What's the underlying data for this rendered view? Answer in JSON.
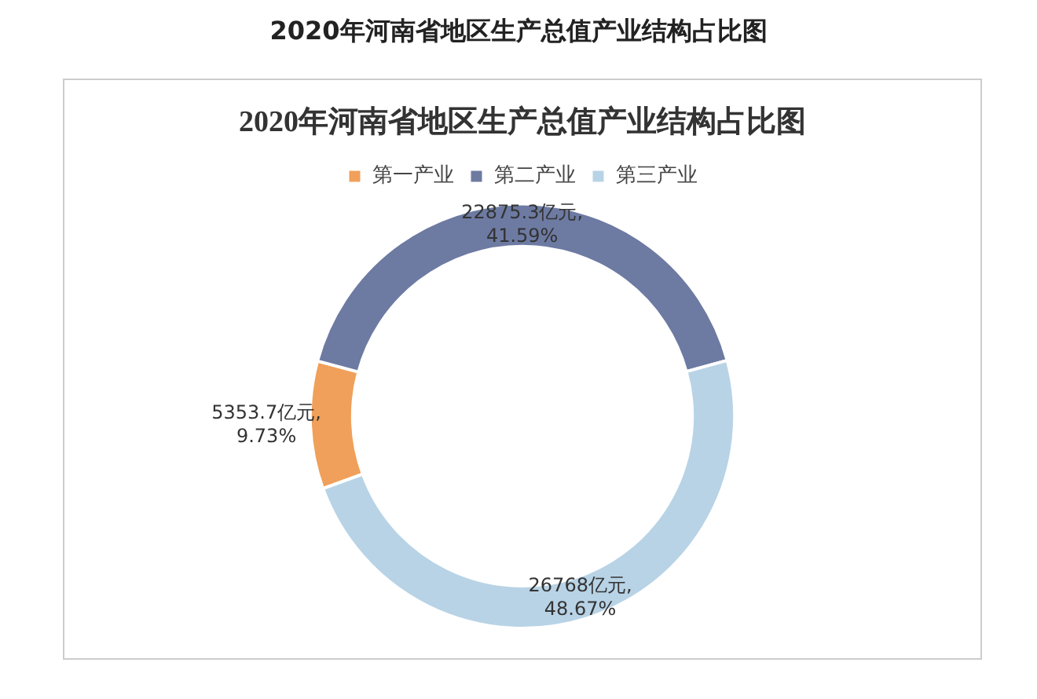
{
  "chart_data": {
    "type": "donut",
    "title": "2020年河南省地区生产总值产业结构占比图",
    "subtitle": "2020年河南省地区生产总值产业结构占比图",
    "categories": [
      "第一产业",
      "第二产业",
      "第三产业"
    ],
    "values": [
      5353.7,
      22875.3,
      26768
    ],
    "colors": [
      "#f0a05a",
      "#6d7aa2",
      "#b8d3e6"
    ],
    "value_labels": [
      "5353.7亿元, 9.73%",
      "22875.3亿元, 41.59%",
      "26768亿元, 48.67%"
    ],
    "legend": "top"
  }
}
